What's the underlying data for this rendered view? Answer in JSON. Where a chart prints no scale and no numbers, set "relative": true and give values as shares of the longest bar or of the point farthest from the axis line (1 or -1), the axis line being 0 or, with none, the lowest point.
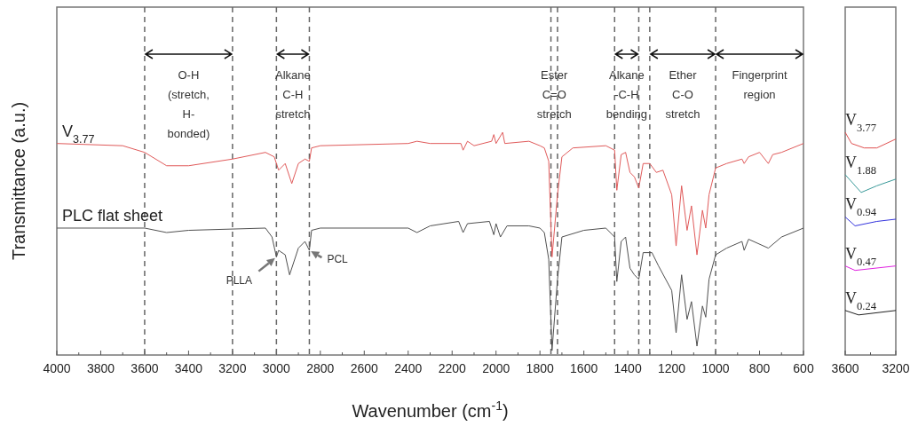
{
  "chart_data": [
    {
      "type": "line",
      "relative": true,
      "xlabel": "Wavenumber (cm$^{-1}$)",
      "ylabel": "Transmittance (a.u.)",
      "xlim": [
        4000,
        600
      ],
      "xticks": [
        4000,
        {
          "value": 3900,
          "label": null
        },
        3800,
        {
          "value": 3700,
          "label": null
        },
        3600,
        {
          "value": 3500,
          "label": null
        },
        3400,
        {
          "value": 3300,
          "label": null
        },
        3200,
        {
          "value": 3100,
          "label": null
        },
        3000,
        {
          "value": 2900,
          "label": null
        },
        2800,
        {
          "value": 2700,
          "label": null
        },
        2600,
        {
          "value": 2500,
          "label": null
        },
        2400,
        {
          "value": 2300,
          "label": null
        },
        2200,
        {
          "value": 2100,
          "label": null
        },
        2000,
        {
          "value": 1900,
          "label": null
        },
        1800,
        {
          "value": 1700,
          "label": null
        },
        1600,
        {
          "value": 1500,
          "label": null
        },
        1400,
        {
          "value": 1300,
          "label": null
        },
        1200,
        {
          "value": 1100,
          "label": null
        },
        1000,
        {
          "value": 900,
          "label": null
        },
        800,
        {
          "value": 700,
          "label": null
        },
        600
      ],
      "legend": false,
      "grid": false,
      "series": [
        {
          "name": "V$_{3.77}$",
          "color": "#e05a5a",
          "x": [
            4000,
            3700,
            3600,
            3500,
            3400,
            3200,
            3050,
            3010,
            2990,
            2960,
            2930,
            2900,
            2870,
            2850,
            2840,
            2800,
            2400,
            2360,
            2300,
            2160,
            2150,
            2130,
            2100,
            2020,
            2010,
            2000,
            1970,
            1960,
            1850,
            1800,
            1780,
            1760,
            1745,
            1720,
            1700,
            1650,
            1500,
            1460,
            1450,
            1430,
            1410,
            1390,
            1370,
            1350,
            1330,
            1300,
            1270,
            1240,
            1200,
            1180,
            1155,
            1130,
            1110,
            1085,
            1060,
            1045,
            1030,
            1000,
            950,
            880,
            870,
            850,
            800,
            760,
            740,
            700,
            600
          ],
          "values": [
            0.95,
            0.94,
            0.91,
            0.85,
            0.85,
            0.88,
            0.91,
            0.89,
            0.83,
            0.86,
            0.77,
            0.86,
            0.88,
            0.87,
            0.93,
            0.94,
            0.95,
            0.96,
            0.95,
            0.95,
            0.92,
            0.96,
            0.94,
            0.96,
            0.99,
            0.95,
            1.0,
            0.95,
            0.96,
            0.94,
            0.93,
            0.87,
            0.44,
            0.72,
            0.89,
            0.93,
            0.94,
            0.92,
            0.74,
            0.9,
            0.91,
            0.82,
            0.8,
            0.75,
            0.86,
            0.86,
            0.82,
            0.83,
            0.72,
            0.49,
            0.76,
            0.56,
            0.67,
            0.45,
            0.65,
            0.57,
            0.72,
            0.84,
            0.86,
            0.88,
            0.86,
            0.89,
            0.91,
            0.86,
            0.9,
            0.91,
            0.95
          ]
        },
        {
          "name": "PLC flat sheet",
          "color": "#505050",
          "x": [
            4000,
            3600,
            3500,
            3400,
            3050,
            3020,
            3000,
            2990,
            2960,
            2940,
            2900,
            2870,
            2850,
            2840,
            2800,
            2400,
            2360,
            2300,
            2170,
            2150,
            2130,
            2030,
            2010,
            2000,
            1980,
            1950,
            1850,
            1800,
            1780,
            1760,
            1745,
            1720,
            1700,
            1600,
            1500,
            1460,
            1450,
            1430,
            1410,
            1390,
            1370,
            1350,
            1330,
            1290,
            1260,
            1200,
            1180,
            1155,
            1130,
            1110,
            1085,
            1060,
            1045,
            1030,
            1000,
            950,
            880,
            870,
            850,
            760,
            700,
            600
          ],
          "values": [
            0.57,
            0.57,
            0.55,
            0.56,
            0.57,
            0.53,
            0.44,
            0.47,
            0.45,
            0.36,
            0.48,
            0.51,
            0.47,
            0.56,
            0.57,
            0.57,
            0.55,
            0.58,
            0.6,
            0.55,
            0.59,
            0.6,
            0.54,
            0.59,
            0.53,
            0.58,
            0.58,
            0.57,
            0.55,
            0.43,
            0.02,
            0.34,
            0.53,
            0.56,
            0.57,
            0.53,
            0.33,
            0.51,
            0.53,
            0.39,
            0.36,
            0.34,
            0.46,
            0.46,
            0.4,
            0.29,
            0.1,
            0.36,
            0.16,
            0.24,
            0.04,
            0.22,
            0.17,
            0.34,
            0.45,
            0.48,
            0.51,
            0.47,
            0.52,
            0.48,
            0.53,
            0.57
          ]
        }
      ],
      "ref_lines": [
        {
          "axis": "x",
          "value": 3600,
          "line_style": "dashed"
        },
        {
          "axis": "x",
          "value": 3200,
          "line_style": "dashed"
        },
        {
          "axis": "x",
          "value": 3000,
          "line_style": "dashed"
        },
        {
          "axis": "x",
          "value": 2850,
          "line_style": "dashed"
        },
        {
          "axis": "x",
          "value": 1750,
          "line_style": "dashed"
        },
        {
          "axis": "x",
          "value": 1720,
          "line_style": "dashed"
        },
        {
          "axis": "x",
          "value": 1460,
          "line_style": "dashed"
        },
        {
          "axis": "x",
          "value": 1350,
          "line_style": "dashed"
        },
        {
          "axis": "x",
          "value": 1300,
          "line_style": "dashed"
        },
        {
          "axis": "x",
          "value": 1000,
          "line_style": "dashed"
        }
      ],
      "annotations": [
        "O-H\n(stretch,\nH-\nbonded)",
        "Alkane\nC-H\nstretch",
        "Ester\nC=O\nstretch",
        "Alkane\n-C-H\nbending",
        "Ether\nC-O\nstretch",
        "Fingerprint\nregion",
        {
          "text": "PLLA",
          "x": 3000,
          "y": 0.44
        },
        {
          "text": "PCL",
          "x": 2850,
          "y": 0.47
        }
      ]
    },
    {
      "type": "line",
      "relative": true,
      "xlim": [
        3600,
        3200
      ],
      "xticks": [
        3600,
        {
          "value": 3400,
          "label": null
        },
        3200
      ],
      "legend": false,
      "grid": false,
      "series": [
        {
          "name": "V$_{3.77}$",
          "color": "#e05050",
          "x": [
            3600,
            3550,
            3450,
            3350,
            3200
          ],
          "values": [
            1.0,
            0.95,
            0.93,
            0.93,
            0.97
          ]
        },
        {
          "name": "V$_{1.88}$",
          "color": "#3a9a9a",
          "x": [
            3600,
            3474,
            3350,
            3200
          ],
          "values": [
            0.81,
            0.73,
            0.76,
            0.79
          ]
        },
        {
          "name": "V$_{0.94}$",
          "color": "#3333dd",
          "x": [
            3600,
            3522,
            3350,
            3200
          ],
          "values": [
            0.62,
            0.58,
            0.6,
            0.61
          ]
        },
        {
          "name": "V$_{0.47}$",
          "color": "#e020e0",
          "x": [
            3600,
            3522,
            3200
          ],
          "values": [
            0.4,
            0.38,
            0.4
          ]
        },
        {
          "name": "V$_{0.24}$",
          "color": "#202020",
          "x": [
            3600,
            3494,
            3200
          ],
          "values": [
            0.2,
            0.18,
            0.2
          ]
        }
      ]
    }
  ]
}
